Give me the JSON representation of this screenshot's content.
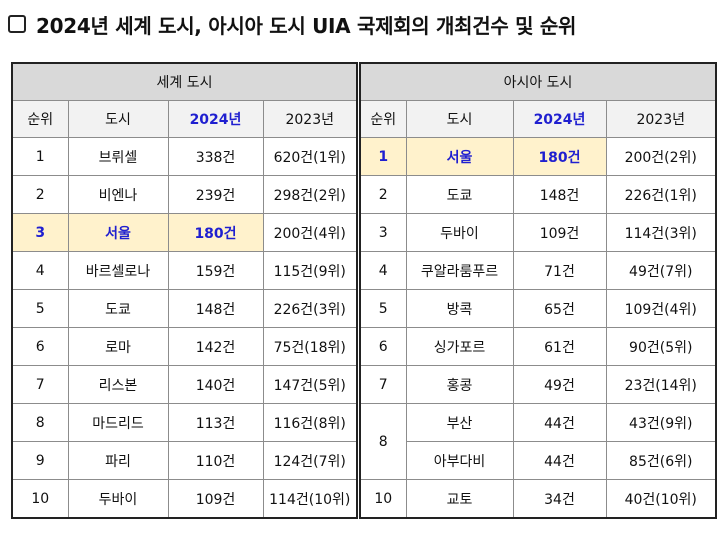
{
  "title": "2024년 세계 도시, 아시아 도시 UIA 국제회의 개최건수 및 순위",
  "accent_color": "#1f1fd0",
  "highlight_color": "#fff2cc",
  "world": {
    "group_label": "세계 도시",
    "headers": [
      "순위",
      "도시",
      "2024년",
      "2023년"
    ],
    "rows": [
      {
        "rank": "1",
        "city": "브뤼셀",
        "y2024": "338건",
        "y2023": "620건(1위)"
      },
      {
        "rank": "2",
        "city": "비엔나",
        "y2024": "239건",
        "y2023": "298건(2위)"
      },
      {
        "rank": "3",
        "city": "서울",
        "y2024": "180건",
        "y2023": "200건(4위)",
        "highlight": true
      },
      {
        "rank": "4",
        "city": "바르셀로나",
        "y2024": "159건",
        "y2023": "115건(9위)"
      },
      {
        "rank": "5",
        "city": "도쿄",
        "y2024": "148건",
        "y2023": "226건(3위)"
      },
      {
        "rank": "6",
        "city": "로마",
        "y2024": "142건",
        "y2023": "75건(18위)"
      },
      {
        "rank": "7",
        "city": "리스본",
        "y2024": "140건",
        "y2023": "147건(5위)"
      },
      {
        "rank": "8",
        "city": "마드리드",
        "y2024": "113건",
        "y2023": "116건(8위)"
      },
      {
        "rank": "9",
        "city": "파리",
        "y2024": "110건",
        "y2023": "124건(7위)"
      },
      {
        "rank": "10",
        "city": "두바이",
        "y2024": "109건",
        "y2023": "114건(10위)"
      }
    ]
  },
  "asia": {
    "group_label": "아시아 도시",
    "headers": [
      "순위",
      "도시",
      "2024년",
      "2023년"
    ],
    "rows": [
      {
        "rank": "1",
        "city": "서울",
        "y2024": "180건",
        "y2023": "200건(2위)",
        "highlight": true
      },
      {
        "rank": "2",
        "city": "도쿄",
        "y2024": "148건",
        "y2023": "226건(1위)"
      },
      {
        "rank": "3",
        "city": "두바이",
        "y2024": "109건",
        "y2023": "114건(3위)"
      },
      {
        "rank": "4",
        "city": "쿠알라룸푸르",
        "y2024": "71건",
        "y2023": "49건(7위)"
      },
      {
        "rank": "5",
        "city": "방콕",
        "y2024": "65건",
        "y2023": "109건(4위)"
      },
      {
        "rank": "6",
        "city": "싱가포르",
        "y2024": "61건",
        "y2023": "90건(5위)"
      },
      {
        "rank": "7",
        "city": "홍콩",
        "y2024": "49건",
        "y2023": "23건(14위)"
      },
      {
        "rank": "8",
        "city": "부산",
        "y2024": "44건",
        "y2023": "43건(9위)"
      },
      {
        "rank": "",
        "city": "아부다비",
        "y2024": "44건",
        "y2023": "85건(6위)"
      },
      {
        "rank": "10",
        "city": "교토",
        "y2024": "34건",
        "y2023": "40건(10위)"
      }
    ]
  }
}
